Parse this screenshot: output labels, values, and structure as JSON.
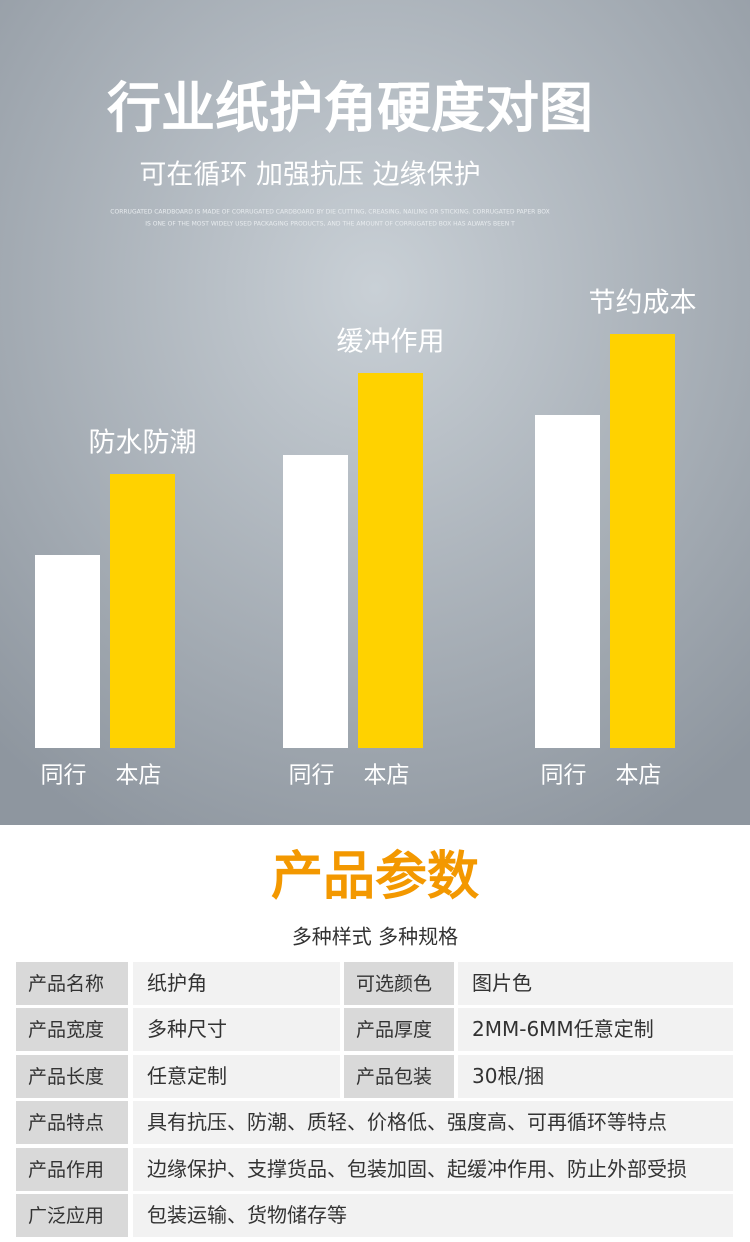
{
  "chart_data": {
    "type": "bar",
    "title": "行业纸护角硬度对图",
    "subtitle": "可在循环 加强抗压 边缘保护",
    "notes": [
      "CORRUGATED CARDBOARD IS MADE OF CORRUGATED CARDBOARD BY DIE CUTTING, CREASING, NAILING OR STICKING. CORRUGATED PAPER BOX",
      "IS ONE OF THE MOST WIDELY USED PACKAGING PRODUCTS, AND THE AMOUNT OF CORRUGATED BOX HAS ALWAYS BEEN T"
    ],
    "categories": [
      "防水防潮",
      "缓冲作用",
      "节约成本"
    ],
    "series": [
      {
        "name": "同行",
        "color": "#ffffff",
        "values": [
          193,
          293,
          333
        ]
      },
      {
        "name": "本店",
        "color": "#ffd200",
        "values": [
          274,
          375,
          414
        ]
      }
    ],
    "ylim": [
      0,
      450
    ]
  },
  "params": {
    "title": "产品参数",
    "subtitle": "多种样式 多种规格",
    "rows": [
      [
        "产品名称",
        "纸护角",
        "可选颜色",
        "图片色"
      ],
      [
        "产品宽度",
        "多种尺寸",
        "产品厚度",
        "2MM-6MM任意定制"
      ],
      [
        "产品长度",
        "任意定制",
        "产品包装",
        "30根/捆"
      ],
      [
        "产品特点",
        "具有抗压、防潮、质轻、价格低、强度高、可再循环等特点"
      ],
      [
        "产品作用",
        "边缘保护、支撑货品、包装加固、起缓冲作用、防止外部受损"
      ],
      [
        "广泛应用",
        "包装运输、货物储存等"
      ]
    ]
  }
}
